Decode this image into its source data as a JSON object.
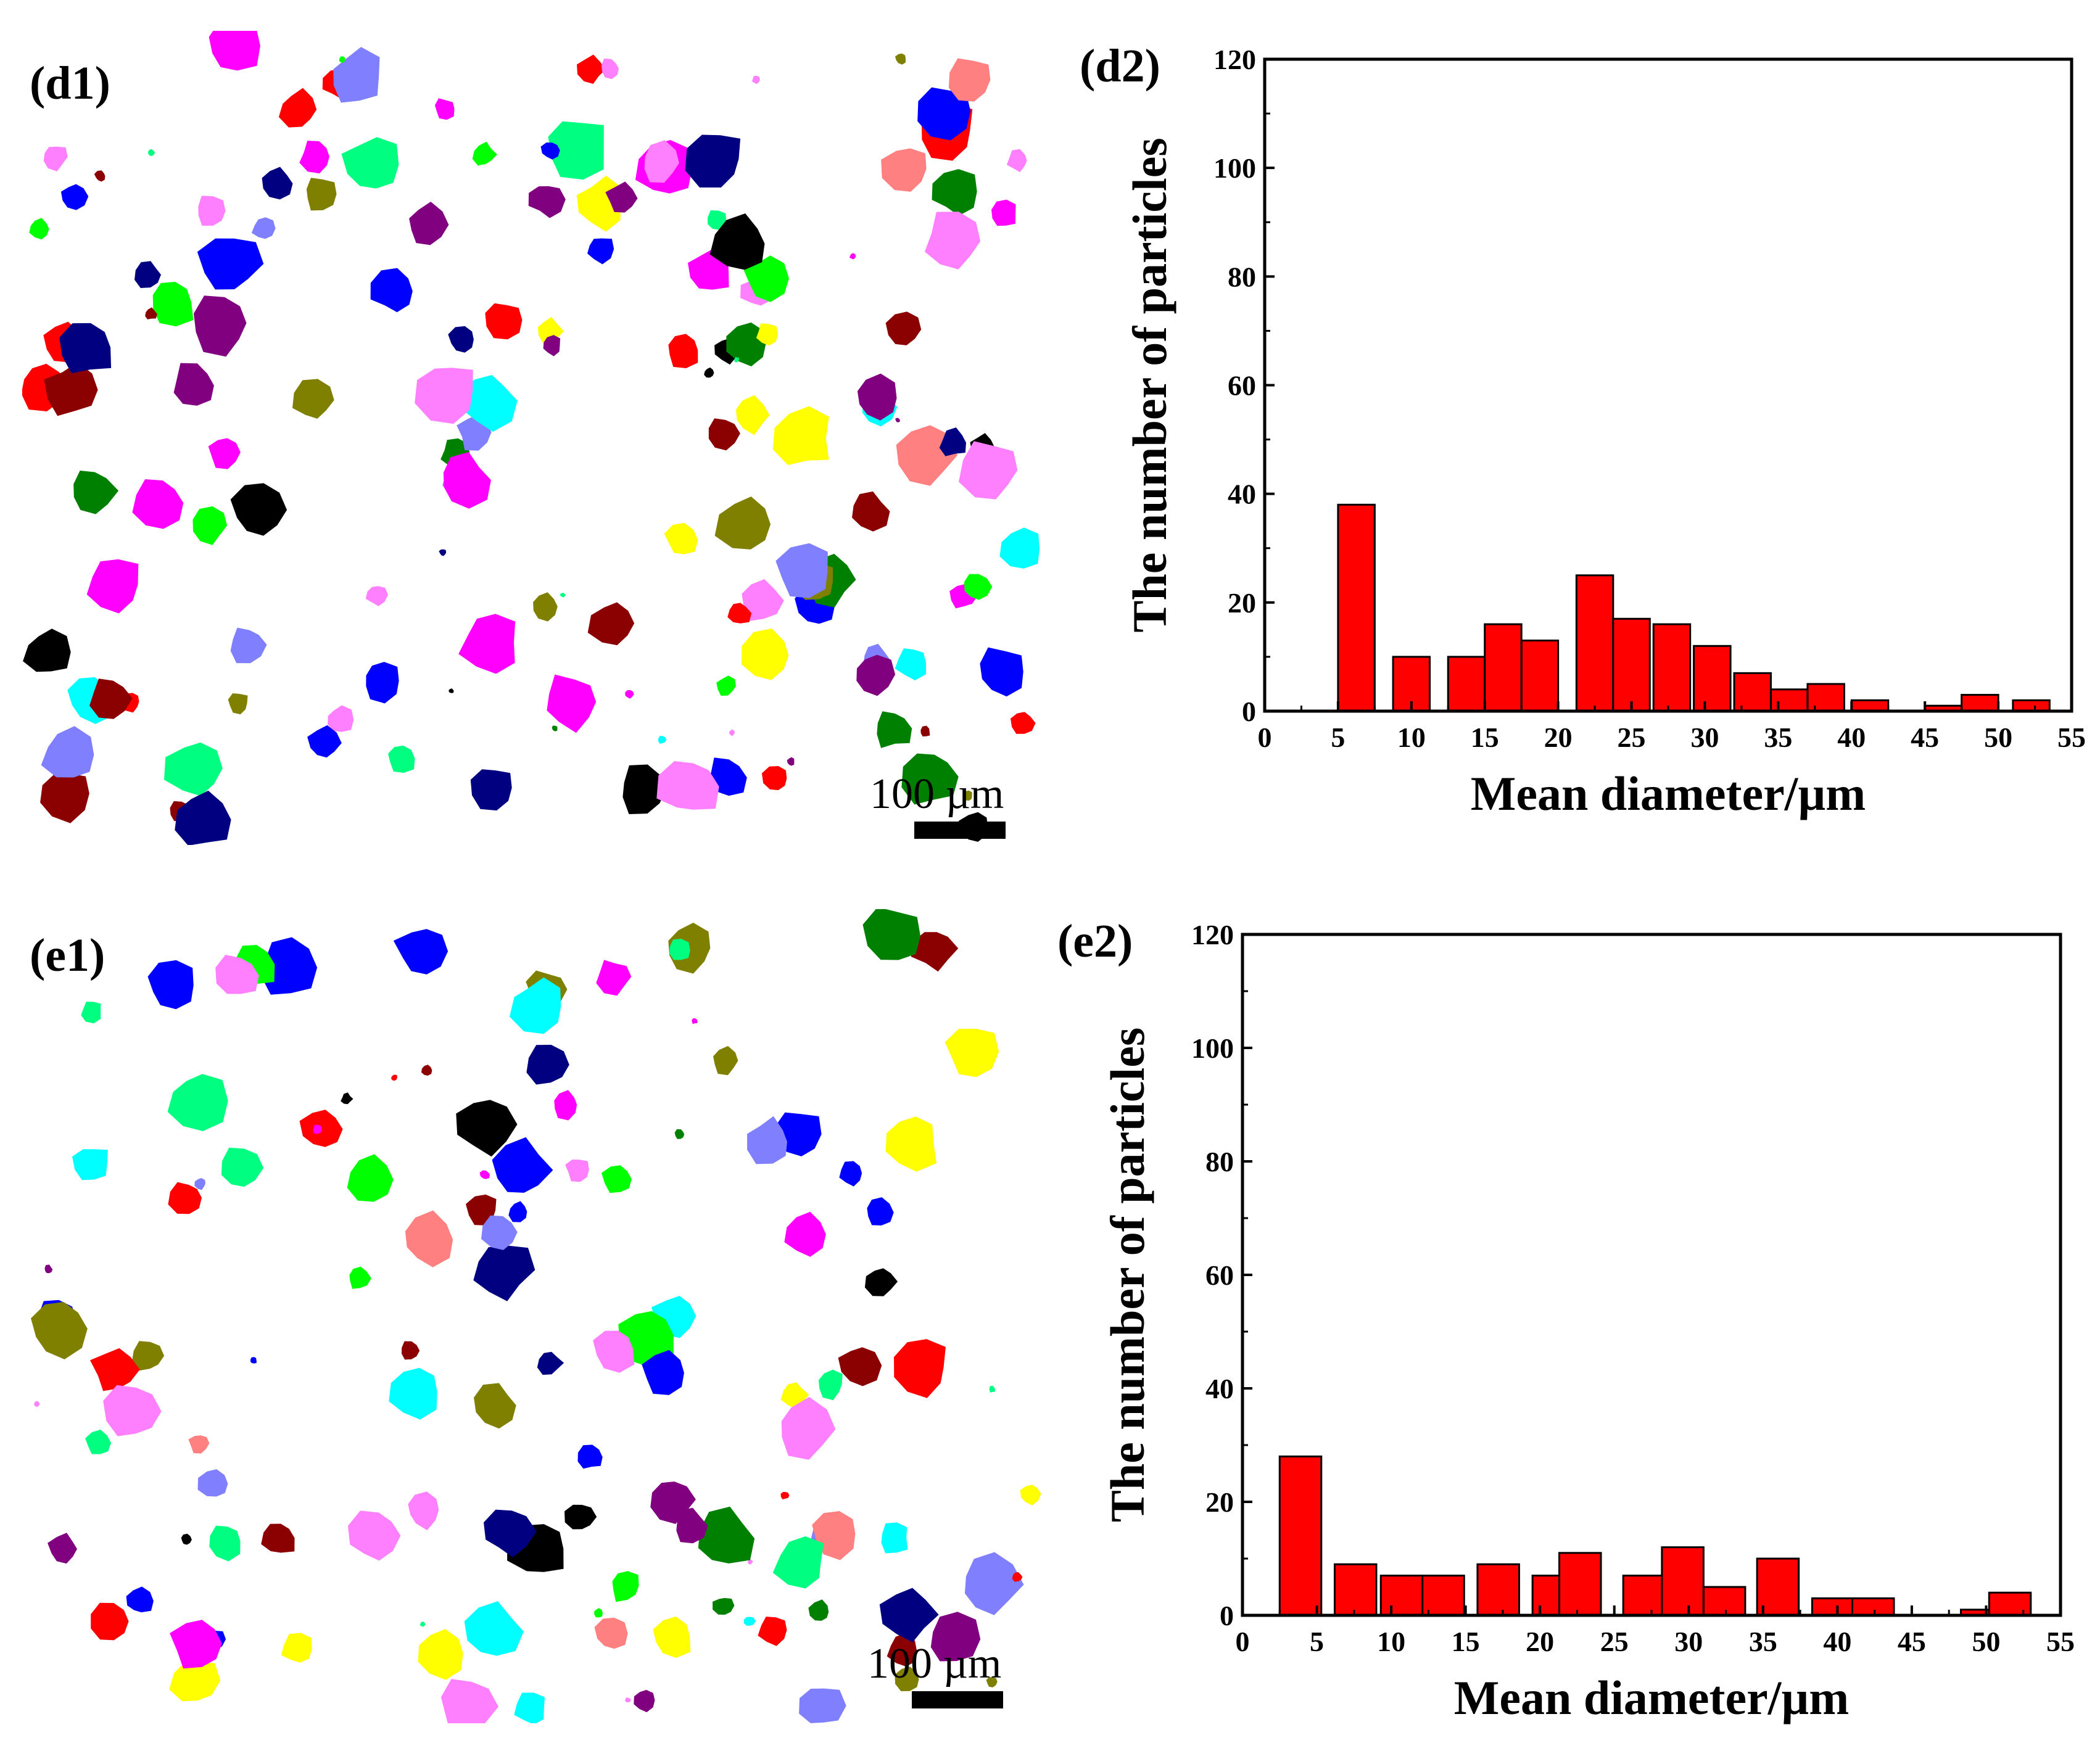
{
  "panels": {
    "d1": {
      "label": "(d1)",
      "scale_bar": "100 µm"
    },
    "e1": {
      "label": "(e1)",
      "scale_bar": "100 µm"
    }
  },
  "particle_colors": [
    "#ff8080",
    "#8b0000",
    "#ff00ff",
    "#00ff00",
    "#00ffff",
    "#0000ff",
    "#008000",
    "#808000",
    "#000080",
    "#800080",
    "#ff80ff",
    "#00ff80",
    "#ff0000",
    "#ffff00",
    "#000000",
    "#8080ff"
  ],
  "chart_data": [
    {
      "type": "bar",
      "panel_label": "(d2)",
      "xlabel": "Mean diameter/µm",
      "ylabel": "The number of particles",
      "xlim": [
        0,
        55
      ],
      "ylim": [
        0,
        120
      ],
      "xticks": [
        0,
        5,
        10,
        15,
        20,
        25,
        30,
        35,
        40,
        45,
        50,
        55
      ],
      "yticks": [
        0,
        20,
        40,
        60,
        80,
        100,
        120
      ],
      "bin_width": 2.5,
      "bins": [
        {
          "x": 5.0,
          "value": 38
        },
        {
          "x": 8.75,
          "value": 10
        },
        {
          "x": 12.5,
          "value": 10
        },
        {
          "x": 15.0,
          "value": 16
        },
        {
          "x": 17.5,
          "value": 13
        },
        {
          "x": 21.25,
          "value": 25
        },
        {
          "x": 23.75,
          "value": 17
        },
        {
          "x": 26.5,
          "value": 16
        },
        {
          "x": 29.25,
          "value": 12
        },
        {
          "x": 32.0,
          "value": 7
        },
        {
          "x": 34.5,
          "value": 4
        },
        {
          "x": 37.0,
          "value": 5
        },
        {
          "x": 40.0,
          "value": 2
        },
        {
          "x": 45.0,
          "value": 1
        },
        {
          "x": 47.5,
          "value": 3
        },
        {
          "x": 51.0,
          "value": 2
        }
      ],
      "color": "#ff0000"
    },
    {
      "type": "bar",
      "panel_label": "(e2)",
      "xlabel": "Mean diameter/µm",
      "ylabel": "The number of particles",
      "xlim": [
        0,
        55
      ],
      "ylim": [
        0,
        120
      ],
      "xticks": [
        0,
        5,
        10,
        15,
        20,
        25,
        30,
        35,
        40,
        45,
        50,
        55
      ],
      "yticks": [
        0,
        20,
        40,
        60,
        80,
        100,
        120
      ],
      "bin_width": 2.8,
      "bins": [
        {
          "x": 2.5,
          "value": 28
        },
        {
          "x": 6.2,
          "value": 9
        },
        {
          "x": 9.3,
          "value": 7
        },
        {
          "x": 12.1,
          "value": 7
        },
        {
          "x": 15.8,
          "value": 9
        },
        {
          "x": 19.5,
          "value": 7
        },
        {
          "x": 21.3,
          "value": 11
        },
        {
          "x": 25.6,
          "value": 7
        },
        {
          "x": 28.2,
          "value": 12
        },
        {
          "x": 31.0,
          "value": 5
        },
        {
          "x": 34.6,
          "value": 10
        },
        {
          "x": 38.3,
          "value": 3
        },
        {
          "x": 41.0,
          "value": 3
        },
        {
          "x": 48.3,
          "value": 1
        },
        {
          "x": 50.2,
          "value": 4
        }
      ],
      "color": "#ff0000"
    }
  ]
}
